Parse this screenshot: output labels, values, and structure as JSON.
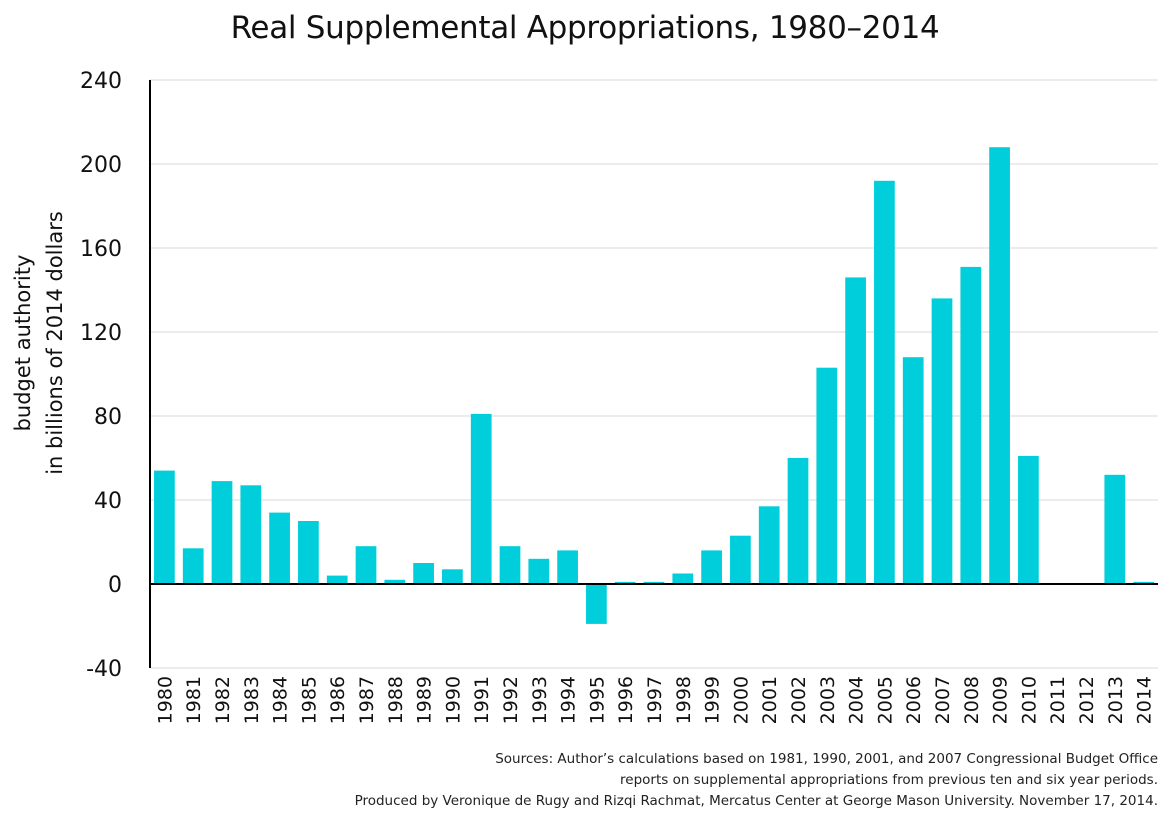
{
  "chart_data": {
    "type": "bar",
    "title": "Real Supplemental Appropriations, 1980–2014",
    "ylabel_lines": [
      "budget authority",
      "in billions of 2014 dollars"
    ],
    "xlabel": "",
    "ylim": [
      -40,
      240
    ],
    "yticks": [
      "-40",
      "0",
      "40",
      "80",
      "120",
      "160",
      "200",
      "240"
    ],
    "ytick_values": [
      -40,
      0,
      40,
      80,
      120,
      160,
      200,
      240
    ],
    "grid": true,
    "legend": "none",
    "categories": [
      "1980",
      "1981",
      "1982",
      "1983",
      "1984",
      "1985",
      "1986",
      "1987",
      "1988",
      "1989",
      "1990",
      "1991",
      "1992",
      "1993",
      "1994",
      "1995",
      "1996",
      "1997",
      "1998",
      "1999",
      "2000",
      "2001",
      "2002",
      "2003",
      "2004",
      "2005",
      "2006",
      "2007",
      "2008",
      "2009",
      "2010",
      "2011",
      "2012",
      "2013",
      "2014"
    ],
    "values": [
      54,
      17,
      49,
      47,
      34,
      30,
      4,
      18,
      2,
      10,
      7,
      81,
      18,
      12,
      16,
      -19,
      1,
      1,
      5,
      16,
      23,
      37,
      60,
      103,
      146,
      192,
      108,
      136,
      151,
      208,
      61,
      0,
      0,
      52,
      1
    ],
    "bar_color": "#00cfdb",
    "grid_color": "#d9d9d9",
    "axis_color": "#000000"
  },
  "sources": {
    "line1": "Sources: Author’s calculations based on 1981, 1990, 2001, and 2007 Congressional Budget Office",
    "line2": "reports on supplemental appropriations from previous ten and six year periods.",
    "line3": "Produced by Veronique de Rugy and Rizqi Rachmat, Mercatus Center at George Mason University. November 17, 2014."
  }
}
